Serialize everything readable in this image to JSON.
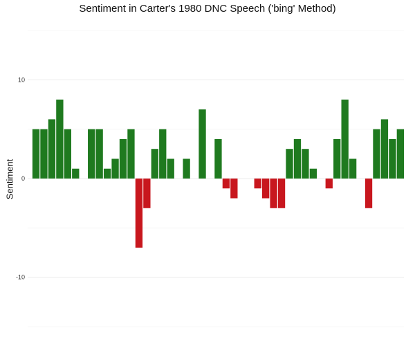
{
  "chart_data": {
    "type": "bar",
    "title": "Sentiment in Carter's 1980 DNC Speech ('bing' Method)",
    "xlabel": "",
    "ylabel": "Sentiment",
    "ylim": [
      -15,
      15
    ],
    "yticks": [
      -10,
      0,
      10
    ],
    "grid": true,
    "legend": "none",
    "colors": {
      "positive": "#1f7a1f",
      "negative": "#c8171e"
    },
    "values": [
      5,
      5,
      6,
      8,
      5,
      1,
      0,
      5,
      5,
      1,
      2,
      4,
      5,
      -7,
      -3,
      3,
      5,
      2,
      0,
      2,
      0,
      7,
      0,
      4,
      -1,
      -2,
      0,
      0,
      -1,
      -2,
      -3,
      -3,
      3,
      4,
      3,
      1,
      0,
      -1,
      4,
      8,
      2,
      0,
      -3,
      5,
      6,
      4,
      5
    ]
  }
}
